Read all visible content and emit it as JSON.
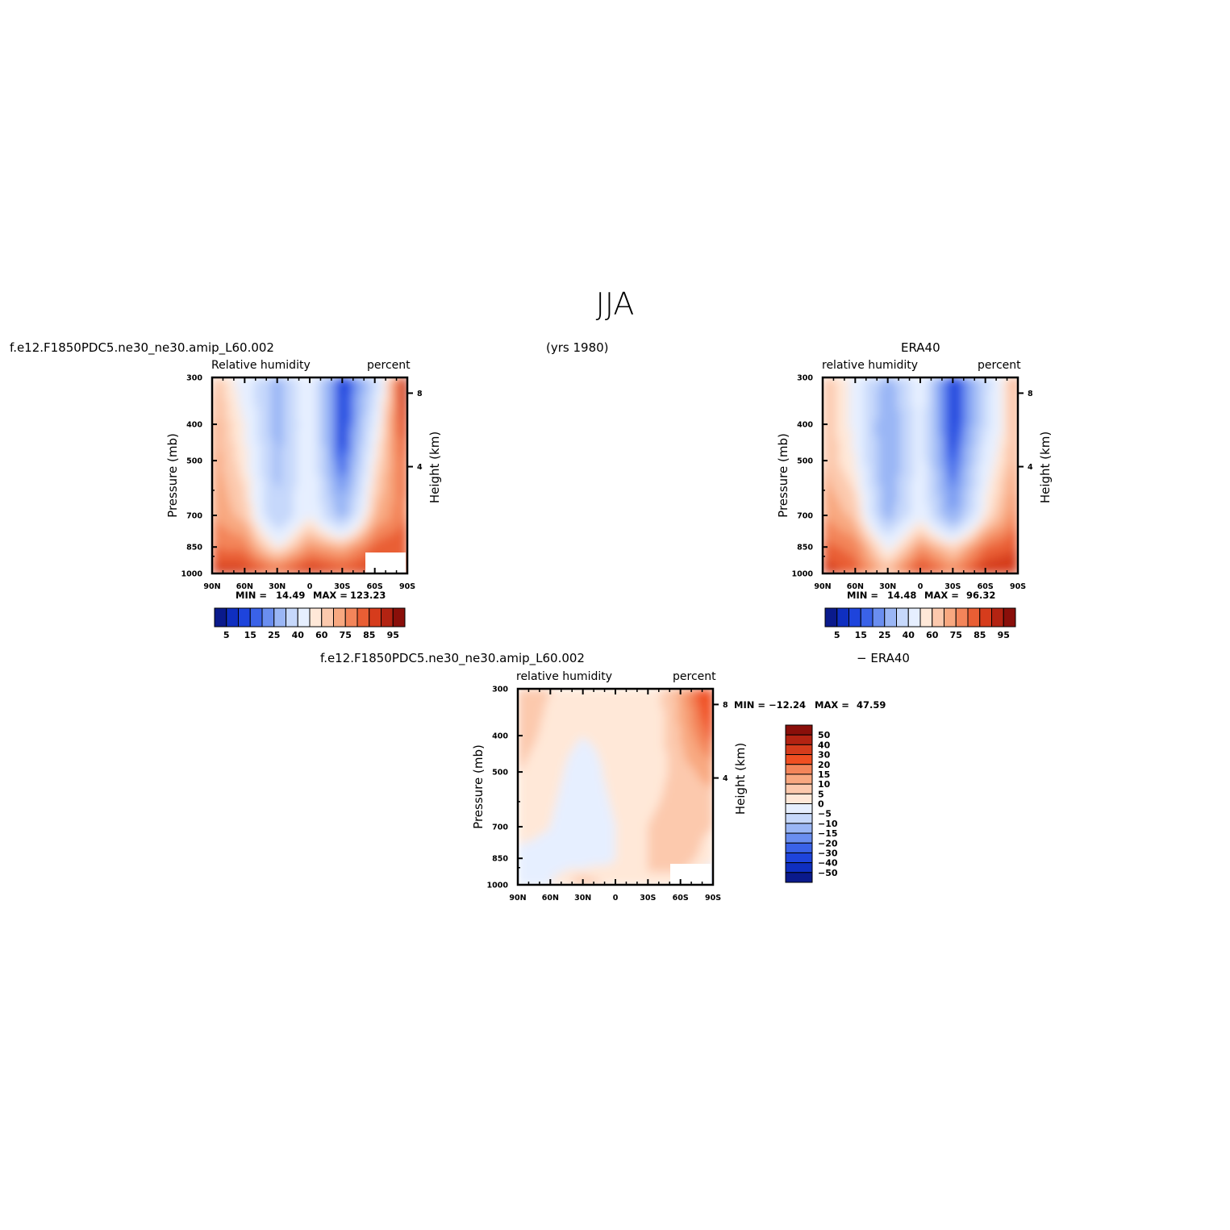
{
  "header": {
    "title": "JJA",
    "case_name": "f.e12.F1850PDC5.ne30_ne30.amip_L60.002",
    "years": "(yrs 1980)",
    "obs_name": "ERA40",
    "diff_case": "f.e12.F1850PDC5.ne30_ne30.amip_L60.002",
    "diff_obs": "− ERA40"
  },
  "panels": {
    "model": {
      "var_label": "Relative humidity",
      "units": "percent",
      "min_label": "MIN =",
      "min_value": "14.49",
      "max_label": "MAX =",
      "max_value": "123.23"
    },
    "obs": {
      "var_label": "relative humidity",
      "units": "percent",
      "min_label": "MIN =",
      "min_value": "14.48",
      "max_label": "MAX =",
      "max_value": "96.32"
    },
    "diff": {
      "var_label": "relative humidity",
      "units": "percent",
      "min_label": "MIN =",
      "min_value": "−12.24",
      "max_label": "MAX =",
      "max_value": "47.59"
    }
  },
  "axes": {
    "y_title": "Pressure (mb)",
    "y2_title": "Height (km)",
    "y_ticks": [
      "300",
      "400",
      "500",
      "700",
      "850",
      "1000"
    ],
    "y2_ticks": [
      "8",
      "4"
    ],
    "x_ticks": [
      "90N",
      "60N",
      "30N",
      "0",
      "30S",
      "60S",
      "90S"
    ]
  },
  "colorbars": {
    "abs_labels": [
      "5",
      "15",
      "25",
      "40",
      "60",
      "75",
      "85",
      "95"
    ],
    "abs_colors": [
      "#0a1a8c",
      "#0f2fc0",
      "#1e44dc",
      "#3a62e8",
      "#6a8ef0",
      "#9ab6f5",
      "#c6d8fb",
      "#e6efff",
      "#ffe8d8",
      "#fcc9ad",
      "#f8a880",
      "#f3855a",
      "#e95e34",
      "#d63c1c",
      "#b32312",
      "#8a0f0a"
    ],
    "diff_labels": [
      "50",
      "40",
      "30",
      "20",
      "15",
      "10",
      "5",
      "0",
      "−5",
      "−10",
      "−15",
      "−20",
      "−30",
      "−40",
      "−50"
    ],
    "diff_colors": [
      "#8a0f0a",
      "#b32312",
      "#d63c1c",
      "#f04f22",
      "#f3855a",
      "#f8a880",
      "#fcc9ad",
      "#ffe8d8",
      "#e6efff",
      "#c6d8fb",
      "#9ab6f5",
      "#6a8ef0",
      "#3a62e8",
      "#1e44dc",
      "#0f2fc0",
      "#0a1a8c"
    ]
  },
  "chart_data": [
    {
      "type": "heatmap",
      "title": "Relative humidity",
      "units": "percent",
      "xlabel": "",
      "ylabel": "Pressure (mb)",
      "y2label": "Height (km)",
      "x_lat": [
        -90,
        -60,
        -30,
        0,
        30,
        60,
        90
      ],
      "y_pressure": [
        300,
        400,
        500,
        700,
        850,
        1000
      ],
      "min": 14.49,
      "max": 123.23,
      "values": [
        [
          70,
          55,
          35,
          60,
          15,
          45,
          95
        ],
        [
          72,
          60,
          35,
          58,
          15,
          55,
          90
        ],
        [
          73,
          62,
          38,
          58,
          20,
          62,
          82
        ],
        [
          75,
          68,
          40,
          60,
          35,
          70,
          80
        ],
        [
          80,
          78,
          60,
          75,
          70,
          82,
          85
        ],
        [
          88,
          88,
          82,
          90,
          85,
          88,
          80
        ]
      ]
    },
    {
      "type": "heatmap",
      "title": "relative humidity",
      "units": "percent",
      "xlabel": "",
      "ylabel": "Pressure (mb)",
      "y2label": "Height (km)",
      "x_lat": [
        -90,
        -60,
        -30,
        0,
        30,
        60,
        90
      ],
      "y_pressure": [
        300,
        400,
        500,
        700,
        850,
        1000
      ],
      "min": 14.48,
      "max": 96.32,
      "values": [
        [
          70,
          58,
          35,
          58,
          15,
          45,
          75
        ],
        [
          70,
          58,
          30,
          55,
          15,
          48,
          72
        ],
        [
          70,
          60,
          30,
          55,
          20,
          55,
          72
        ],
        [
          75,
          68,
          35,
          58,
          30,
          62,
          78
        ],
        [
          82,
          78,
          58,
          75,
          65,
          80,
          85
        ],
        [
          90,
          82,
          70,
          88,
          78,
          90,
          90
        ]
      ]
    },
    {
      "type": "heatmap",
      "title": "relative humidity",
      "units": "percent",
      "xlabel": "",
      "ylabel": "Pressure (mb)",
      "y2label": "Height (km)",
      "x_lat": [
        -90,
        -60,
        -30,
        0,
        30,
        60,
        90
      ],
      "y_pressure": [
        300,
        400,
        500,
        700,
        850,
        1000
      ],
      "min": -12.24,
      "max": 47.59,
      "values": [
        [
          10,
          5,
          3,
          2,
          0,
          12,
          30
        ],
        [
          8,
          3,
          0,
          2,
          0,
          10,
          22
        ],
        [
          5,
          2,
          -3,
          2,
          0,
          8,
          12
        ],
        [
          3,
          0,
          -5,
          0,
          5,
          10,
          5
        ],
        [
          -2,
          -3,
          -5,
          0,
          5,
          10,
          0
        ],
        [
          -5,
          0,
          10,
          2,
          5,
          0,
          -5
        ]
      ]
    }
  ]
}
